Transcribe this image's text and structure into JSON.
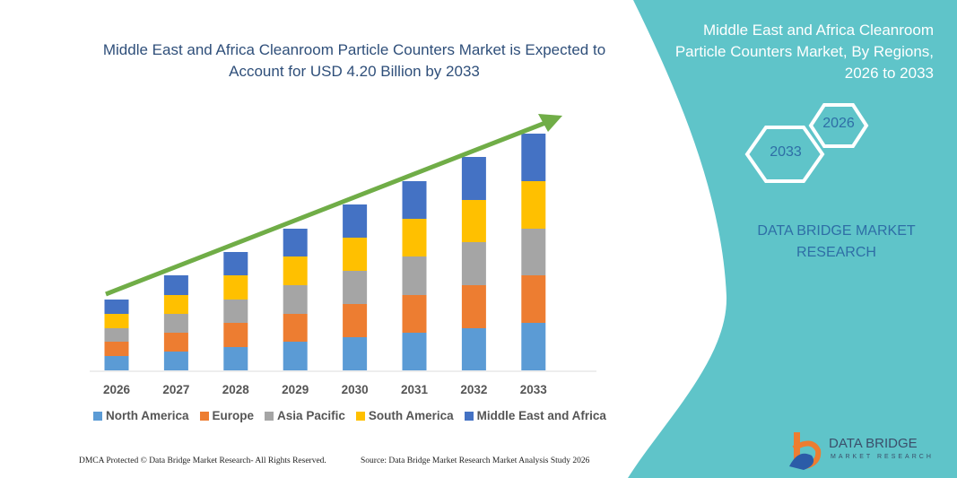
{
  "header": {
    "title": "Middle East and Africa Cleanroom Particle Counters Market is Expected to Account for USD 4.20 Billion by 2033",
    "right_title": "Middle East and Africa Cleanroom Particle Counters Market, By Regions, 2026 to 2033",
    "hex_start": "2026",
    "hex_end": "2033",
    "brand": "DATA BRIDGE MARKET RESEARCH"
  },
  "footer": {
    "dmca": "DMCA Protected © Data Bridge Market Research- All Rights Reserved.",
    "source": "Source: Data Bridge Market Research Market Analysis Study 2026"
  },
  "logo": {
    "name": "DATA BRIDGE",
    "sub": "MARKET RESEARCH"
  },
  "colors": {
    "teal": "#5fc4c9",
    "arrow": "#70ad47"
  },
  "chart_data": {
    "type": "bar",
    "stacked": true,
    "title": "Middle East and Africa Cleanroom Particle Counters Market is Expected to Account for USD 4.20 Billion by 2033",
    "categories": [
      "2026",
      "2027",
      "2028",
      "2029",
      "2030",
      "2031",
      "2032",
      "2033"
    ],
    "y_axis_shown": false,
    "grid": false,
    "legend_position": "bottom",
    "trend_arrow": true,
    "series": [
      {
        "name": "North America",
        "color": "#5b9bd5",
        "values": [
          1.6,
          2.1,
          2.6,
          3.2,
          3.7,
          4.2,
          4.7,
          5.3
        ]
      },
      {
        "name": "Europe",
        "color": "#ed7d31",
        "values": [
          1.6,
          2.1,
          2.7,
          3.1,
          3.7,
          4.2,
          4.8,
          5.3
        ]
      },
      {
        "name": "Asia Pacific",
        "color": "#a5a5a5",
        "values": [
          1.5,
          2.1,
          2.6,
          3.2,
          3.7,
          4.3,
          4.8,
          5.2
        ]
      },
      {
        "name": "South America",
        "color": "#ffc000",
        "values": [
          1.6,
          2.1,
          2.7,
          3.2,
          3.7,
          4.2,
          4.7,
          5.3
        ]
      },
      {
        "name": "Middle East and Africa",
        "color": "#4472c4",
        "values": [
          1.6,
          2.2,
          2.6,
          3.1,
          3.7,
          4.2,
          4.8,
          5.3
        ]
      }
    ]
  }
}
